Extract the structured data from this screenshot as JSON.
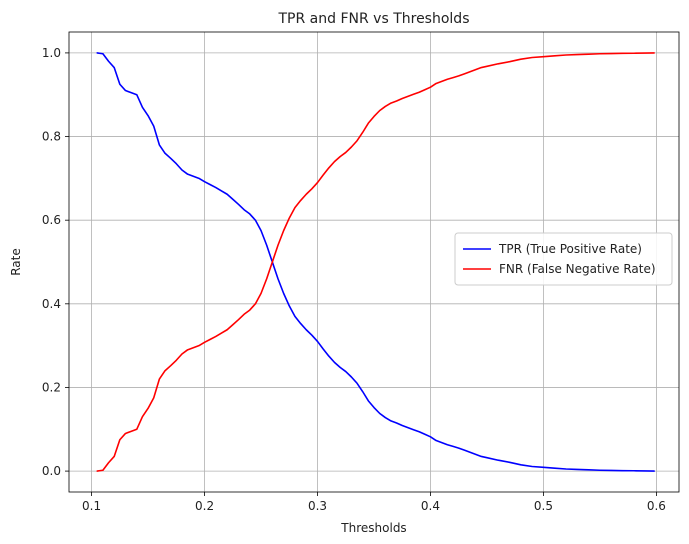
{
  "chart_data": {
    "type": "line",
    "title": "TPR and FNR vs Thresholds",
    "xlabel": "Thresholds",
    "ylabel": "Rate",
    "xlim": [
      0.08,
      0.62
    ],
    "ylim": [
      -0.05,
      1.05
    ],
    "xticks": [
      "0.1",
      "0.2",
      "0.3",
      "0.4",
      "0.5",
      "0.6"
    ],
    "xtick_values": [
      0.1,
      0.2,
      0.3,
      0.4,
      0.5,
      0.6
    ],
    "yticks": [
      "0.0",
      "0.2",
      "0.4",
      "0.6",
      "0.8",
      "1.0"
    ],
    "ytick_values": [
      0.0,
      0.2,
      0.4,
      0.6,
      0.8,
      1.0
    ],
    "grid": true,
    "legend_position": "center-right",
    "x": [
      0.105,
      0.11,
      0.115,
      0.12,
      0.125,
      0.13,
      0.135,
      0.14,
      0.145,
      0.15,
      0.155,
      0.16,
      0.165,
      0.17,
      0.175,
      0.18,
      0.185,
      0.19,
      0.195,
      0.2,
      0.205,
      0.21,
      0.215,
      0.22,
      0.225,
      0.23,
      0.235,
      0.24,
      0.245,
      0.25,
      0.255,
      0.26,
      0.265,
      0.27,
      0.275,
      0.28,
      0.285,
      0.29,
      0.295,
      0.3,
      0.305,
      0.31,
      0.315,
      0.32,
      0.325,
      0.33,
      0.335,
      0.34,
      0.345,
      0.35,
      0.355,
      0.36,
      0.365,
      0.37,
      0.375,
      0.38,
      0.385,
      0.39,
      0.395,
      0.4,
      0.405,
      0.41,
      0.415,
      0.42,
      0.425,
      0.43,
      0.435,
      0.44,
      0.445,
      0.45,
      0.46,
      0.47,
      0.48,
      0.49,
      0.5,
      0.51,
      0.52,
      0.53,
      0.54,
      0.55,
      0.56,
      0.57,
      0.58,
      0.59,
      0.598
    ],
    "series": [
      {
        "name": "TPR (True Positive Rate)",
        "color": "#0000ff",
        "values": [
          1.0,
          0.998,
          0.98,
          0.965,
          0.925,
          0.91,
          0.905,
          0.9,
          0.87,
          0.85,
          0.825,
          0.78,
          0.76,
          0.748,
          0.735,
          0.72,
          0.71,
          0.705,
          0.7,
          0.692,
          0.685,
          0.678,
          0.67,
          0.662,
          0.65,
          0.638,
          0.625,
          0.615,
          0.6,
          0.575,
          0.54,
          0.5,
          0.46,
          0.425,
          0.395,
          0.37,
          0.353,
          0.338,
          0.325,
          0.31,
          0.292,
          0.275,
          0.26,
          0.248,
          0.238,
          0.225,
          0.21,
          0.19,
          0.168,
          0.152,
          0.138,
          0.128,
          0.12,
          0.115,
          0.109,
          0.104,
          0.099,
          0.094,
          0.088,
          0.082,
          0.073,
          0.068,
          0.063,
          0.059,
          0.055,
          0.05,
          0.045,
          0.04,
          0.035,
          0.032,
          0.026,
          0.021,
          0.015,
          0.011,
          0.009,
          0.007,
          0.005,
          0.004,
          0.003,
          0.002,
          0.0015,
          0.001,
          0.0008,
          0.0004,
          0.0
        ]
      },
      {
        "name": "FNR (False Negative Rate)",
        "color": "#ff0000",
        "values": [
          0.0,
          0.002,
          0.02,
          0.035,
          0.075,
          0.09,
          0.095,
          0.1,
          0.13,
          0.15,
          0.175,
          0.22,
          0.24,
          0.252,
          0.265,
          0.28,
          0.29,
          0.295,
          0.3,
          0.308,
          0.315,
          0.322,
          0.33,
          0.338,
          0.35,
          0.362,
          0.375,
          0.385,
          0.4,
          0.425,
          0.46,
          0.5,
          0.54,
          0.575,
          0.605,
          0.63,
          0.647,
          0.662,
          0.675,
          0.69,
          0.708,
          0.725,
          0.74,
          0.752,
          0.762,
          0.775,
          0.79,
          0.81,
          0.832,
          0.848,
          0.862,
          0.872,
          0.88,
          0.885,
          0.891,
          0.896,
          0.901,
          0.906,
          0.912,
          0.918,
          0.927,
          0.932,
          0.937,
          0.941,
          0.945,
          0.95,
          0.955,
          0.96,
          0.965,
          0.968,
          0.974,
          0.979,
          0.985,
          0.989,
          0.991,
          0.993,
          0.995,
          0.996,
          0.997,
          0.998,
          0.9985,
          0.999,
          0.9992,
          0.9996,
          1.0
        ]
      }
    ]
  }
}
